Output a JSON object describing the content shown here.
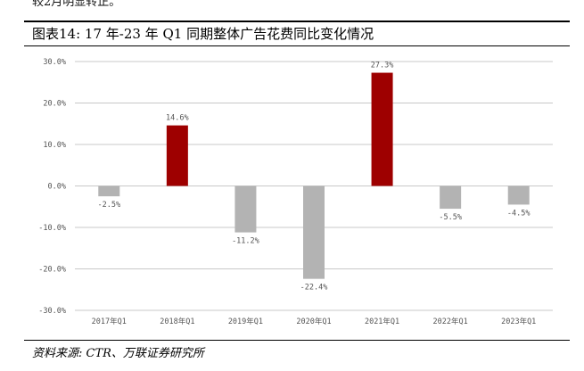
{
  "header": {
    "cut_text": "较2月明显转正。",
    "title": "图表14:  17 年-23 年 Q1 同期整体广告花费同比变化情况"
  },
  "footer": {
    "source": "资料来源: CTR、万联证券研究所"
  },
  "colors": {
    "positive": "#9e0000",
    "negative": "#b3b3b3",
    "gridline": "#c8c8c8",
    "axis_text": "#555555"
  },
  "chart_data": {
    "type": "bar",
    "categories": [
      "2017年Q1",
      "2018年Q1",
      "2019年Q1",
      "2020年Q1",
      "2021年Q1",
      "2022年Q1",
      "2023年Q1"
    ],
    "values": [
      -2.5,
      14.6,
      -11.2,
      -22.4,
      27.3,
      -5.5,
      -4.5
    ],
    "value_labels": [
      "-2.5%",
      "14.6%",
      "-11.2%",
      "-22.4%",
      "27.3%",
      "-5.5%",
      "-4.5%"
    ],
    "ylim": [
      -30,
      30
    ],
    "yticks": [
      30,
      20,
      10,
      0,
      -10,
      -20,
      -30
    ],
    "ytick_labels": [
      "30.0%",
      "20.0%",
      "10.0%",
      "0.0%",
      "-10.0%",
      "-20.0%",
      "-30.0%"
    ],
    "grid": true,
    "legend": "none"
  }
}
